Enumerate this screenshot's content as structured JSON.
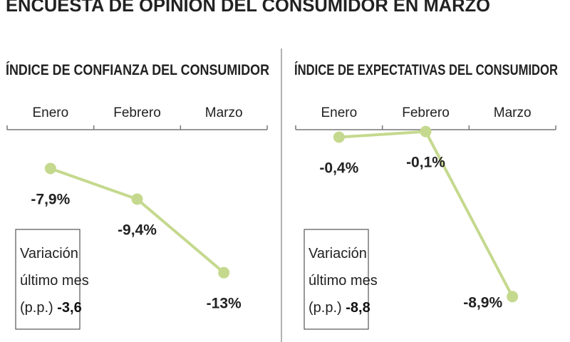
{
  "title": "ENCUESTA DE OPINIÓN DEL CONSUMIDOR EN MARZO",
  "chart_data": [
    {
      "type": "line",
      "title": "ÍNDICE DE CONFIANZA DEL CONSUMIDOR",
      "categories": [
        "Enero",
        "Febrero",
        "Marzo"
      ],
      "values": [
        -7.9,
        -9.4,
        -13
      ],
      "value_labels": [
        "-7,9%",
        "-9,4%",
        "-13%"
      ],
      "color": "#c5d98e",
      "ylim": [
        -15,
        -6
      ],
      "note_lines": [
        "Variación",
        "último mes",
        "(p.p.)"
      ],
      "note_value": -3.6,
      "note_value_label": "-3,6"
    },
    {
      "type": "line",
      "title": "ÍNDICE DE EXPECTATIVAS DEL CONSUMIDOR",
      "categories": [
        "Enero",
        "Febrero",
        "Marzo"
      ],
      "values": [
        -0.4,
        -0.1,
        -8.9
      ],
      "value_labels": [
        "-0,4%",
        "-0,1%",
        "-8,9%"
      ],
      "color": "#c5d98e",
      "ylim": [
        -9.8,
        0
      ],
      "note_lines": [
        "Variación",
        "último mes",
        "(p.p.)"
      ],
      "note_value": -8.8,
      "note_value_label": "-8,8"
    }
  ]
}
